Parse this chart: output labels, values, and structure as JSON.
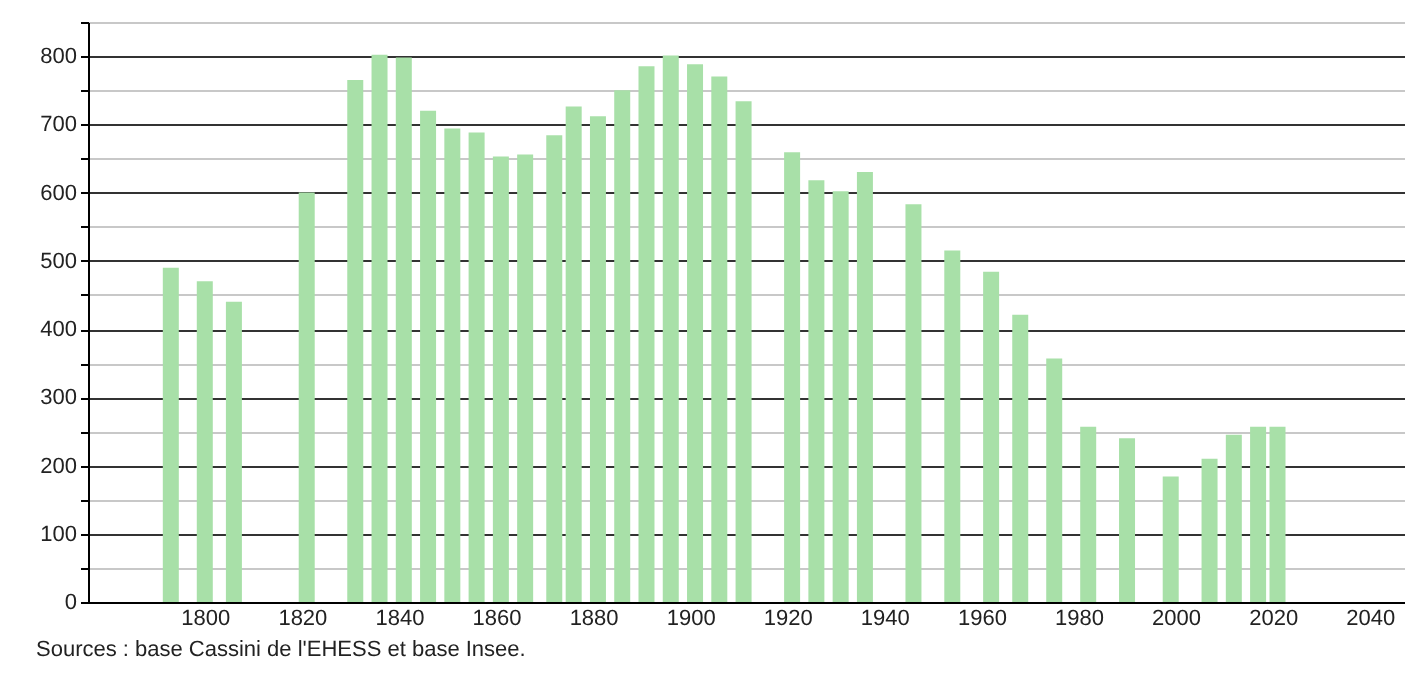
{
  "chart_data": {
    "type": "bar",
    "x": [
      1793,
      1800,
      1806,
      1821,
      1831,
      1836,
      1841,
      1846,
      1851,
      1856,
      1861,
      1866,
      1872,
      1876,
      1881,
      1886,
      1891,
      1896,
      1901,
      1906,
      1911,
      1921,
      1926,
      1931,
      1936,
      1946,
      1954,
      1962,
      1968,
      1975,
      1982,
      1990,
      1999,
      2007,
      2012,
      2017,
      2021
    ],
    "values": [
      490,
      470,
      440,
      600,
      765,
      802,
      798,
      720,
      694,
      688,
      653,
      656,
      684,
      726,
      712,
      750,
      785,
      801,
      788,
      770,
      734,
      659,
      618,
      602,
      630,
      583,
      515,
      484,
      421,
      357,
      257,
      240,
      184,
      210,
      245,
      257,
      257
    ],
    "color": "#a8e0a8",
    "xlim": [
      1778,
      2045
    ],
    "xticks": [
      1800,
      1820,
      1840,
      1860,
      1880,
      1900,
      1920,
      1940,
      1960,
      1980,
      2000,
      2020,
      2040
    ],
    "ylim": [
      0,
      850
    ],
    "yticks": [
      0,
      {
        "value": 50,
        "label": null
      },
      100,
      {
        "value": 150,
        "label": null
      },
      200,
      {
        "value": 250,
        "label": null
      },
      300,
      {
        "value": 350,
        "label": null
      },
      400,
      {
        "value": 450,
        "label": null
      },
      500,
      {
        "value": 550,
        "label": null
      },
      600,
      {
        "value": 650,
        "label": null
      },
      700,
      {
        "value": 750,
        "label": null
      },
      800,
      {
        "value": 850,
        "label": null
      }
    ],
    "grid": "y",
    "annotations": [
      "Sources : base Cassini de l'EHESS et base Insee."
    ]
  }
}
